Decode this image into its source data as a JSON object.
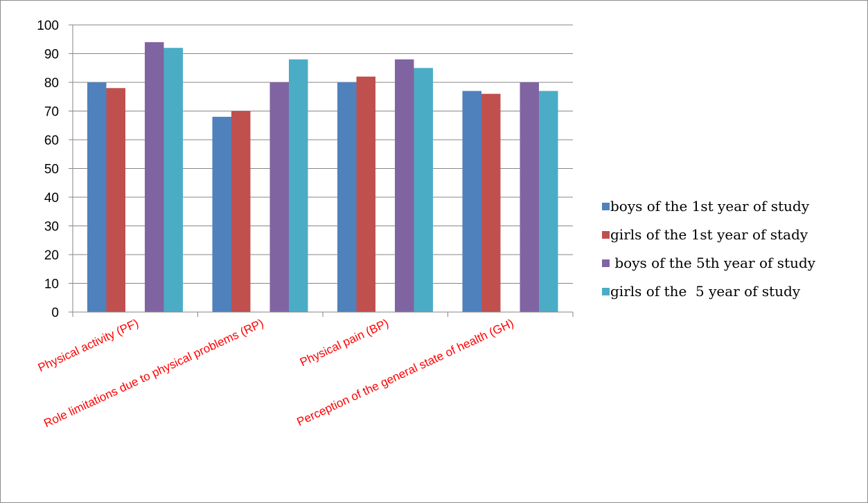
{
  "chart_data": {
    "type": "bar",
    "categories": [
      "Physical activity (PF)",
      "Role limitations due to physical problems (RP)",
      "Physical pain (BP)",
      "Perception of the general state of health (GH)"
    ],
    "series": [
      {
        "name": "boys of the 1st year of study",
        "color": "#4f81bd",
        "values": [
          80,
          68,
          80,
          77
        ]
      },
      {
        "name": "girls of the 1st year of stady",
        "color": "#c0504d",
        "values": [
          78,
          70,
          82,
          76
        ]
      },
      {
        "name": " boys of the 5th year of study",
        "color": "#8064a2",
        "values": [
          94,
          80,
          88,
          80
        ]
      },
      {
        "name": "girls of the  5 year of study",
        "color": "#4bacc6",
        "values": [
          92,
          88,
          85,
          77
        ]
      }
    ],
    "ylim": [
      0,
      100
    ],
    "yticks": [
      "0",
      "10",
      "20",
      "30",
      "40",
      "50",
      "60",
      "70",
      "80",
      "90",
      "100"
    ],
    "grid": true,
    "legend_position": "right",
    "category_label_color": "#ff0000"
  }
}
